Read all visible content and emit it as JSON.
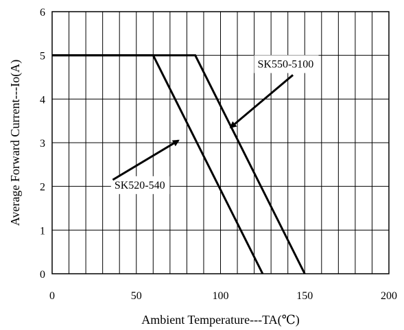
{
  "chart_data": {
    "type": "line",
    "title": "",
    "xlabel": "Ambient Temperature---TA(℃)",
    "ylabel": "Average Forward Current---Io(A)",
    "xlim": [
      0,
      200
    ],
    "ylim": [
      0,
      6
    ],
    "x_ticks": [
      0,
      50,
      100,
      150,
      200
    ],
    "y_ticks": [
      0,
      1,
      2,
      3,
      4,
      5,
      6
    ],
    "x_minor_step": 10,
    "grid": true,
    "legend": "none",
    "series": [
      {
        "name": "SK520-540",
        "points": [
          [
            0,
            5
          ],
          [
            60,
            5
          ],
          [
            125,
            0
          ]
        ]
      },
      {
        "name": "SK550-5100",
        "points": [
          [
            0,
            5
          ],
          [
            85,
            5
          ],
          [
            150,
            0
          ]
        ]
      }
    ],
    "annotations": [
      {
        "text": "SK520-540",
        "x": 37,
        "y": 1.95,
        "arrow_from": [
          36,
          2.15
        ],
        "arrow_to": [
          75,
          3.05
        ]
      },
      {
        "text": "SK550-5100",
        "x": 122,
        "y": 4.72,
        "arrow_from": [
          143,
          4.55
        ],
        "arrow_to": [
          106,
          3.35
        ]
      }
    ],
    "colors": {
      "line": "#000000",
      "grid": "#000000",
      "background": "#ffffff"
    }
  }
}
